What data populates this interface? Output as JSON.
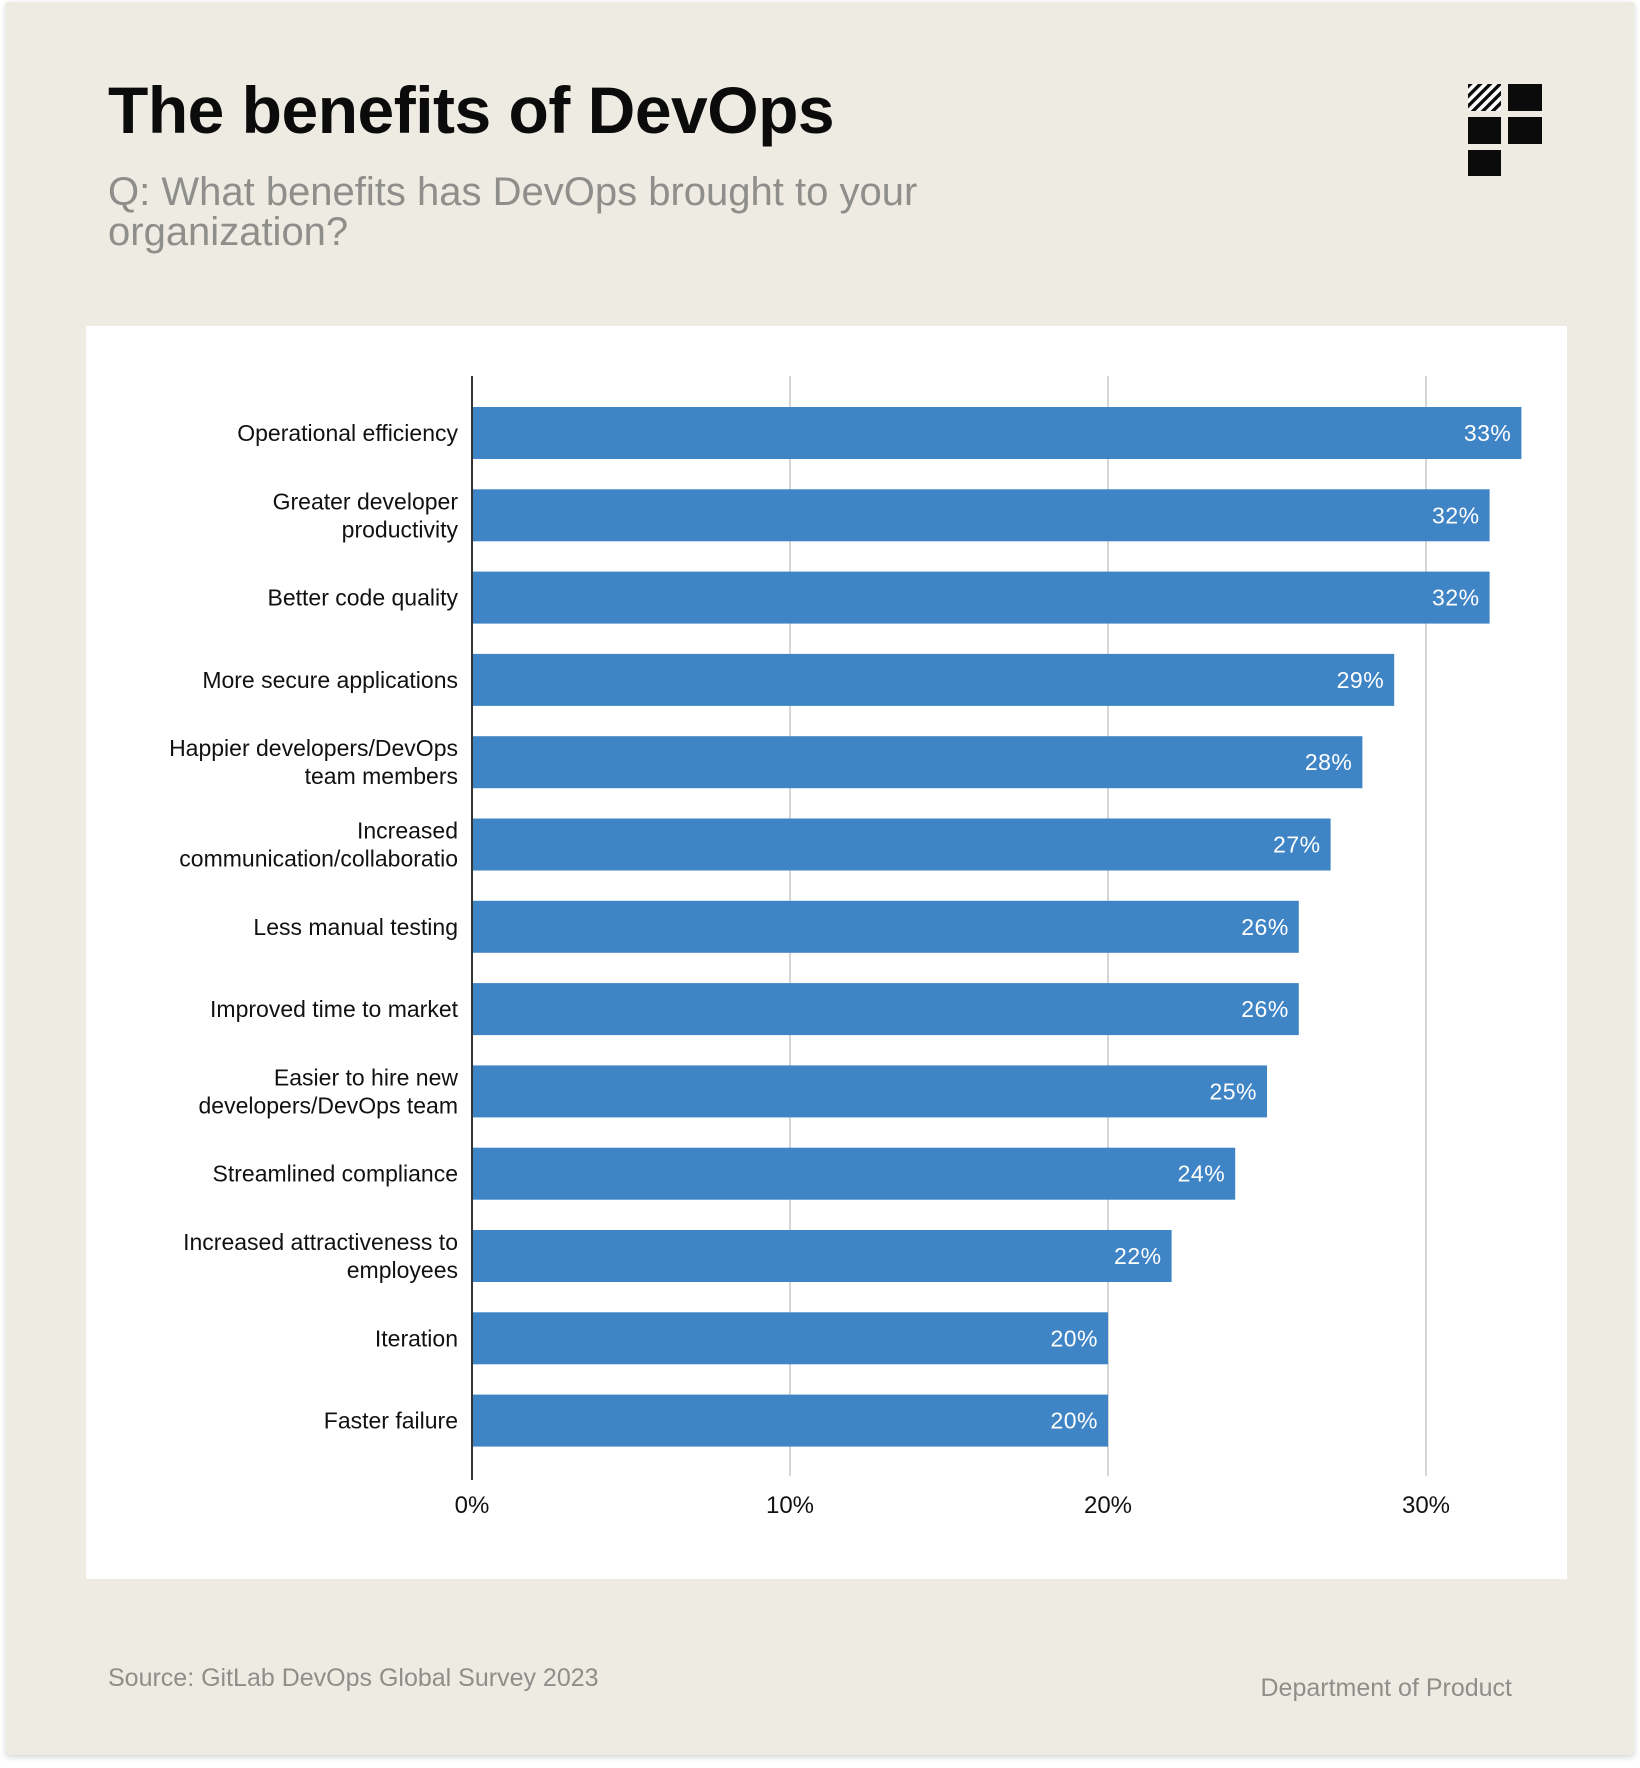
{
  "header": {
    "title": "The benefits of DevOps",
    "subtitle": "Q: What benefits has DevOps brought to your organization?"
  },
  "logo": {
    "icon": "department-of-product-logo-icon"
  },
  "footer": {
    "source": "Source: GitLab DevOps Global Survey 2023",
    "credit": "Department of Product"
  },
  "colors": {
    "background": "#eeece2",
    "bar": "#3f85c6",
    "bar_label": "#ffffff",
    "grid": "#d6d6d6",
    "axis": "#333333"
  },
  "chart_data": {
    "type": "bar",
    "orientation": "horizontal",
    "categories": [
      "Operational efficiency",
      "Greater developer productivity",
      "Better code quality",
      "More secure applications",
      "Happier developers/DevOps team members",
      "Increased communication/collaboratio",
      "Less manual testing",
      "Improved time to market",
      "Easier to hire new developers/DevOps team",
      "Streamlined compliance",
      "Increased attractiveness to employees",
      "Iteration",
      "Faster failure"
    ],
    "category_lines": [
      [
        "Operational efficiency"
      ],
      [
        "Greater developer",
        "productivity"
      ],
      [
        "Better code quality"
      ],
      [
        "More secure applications"
      ],
      [
        "Happier developers/DevOps",
        "team members"
      ],
      [
        "Increased",
        "communication/collaboratio"
      ],
      [
        "Less manual testing"
      ],
      [
        "Improved time to market"
      ],
      [
        "Easier to hire new",
        "developers/DevOps team"
      ],
      [
        "Streamlined compliance"
      ],
      [
        "Increased attractiveness to",
        "employees"
      ],
      [
        "Iteration"
      ],
      [
        "Faster failure"
      ]
    ],
    "values": [
      33,
      32,
      32,
      29,
      28,
      27,
      26,
      26,
      25,
      24,
      22,
      20,
      20
    ],
    "data_labels": [
      "33%",
      "32%",
      "32%",
      "29%",
      "28%",
      "27%",
      "26%",
      "26%",
      "25%",
      "24%",
      "22%",
      "20%",
      "20%"
    ],
    "xlim": [
      0,
      33
    ],
    "x_ticks": [
      0,
      10,
      20,
      30
    ],
    "x_tick_labels": [
      "0%",
      "10%",
      "20%",
      "30%"
    ],
    "grid": true,
    "legend": "none"
  }
}
